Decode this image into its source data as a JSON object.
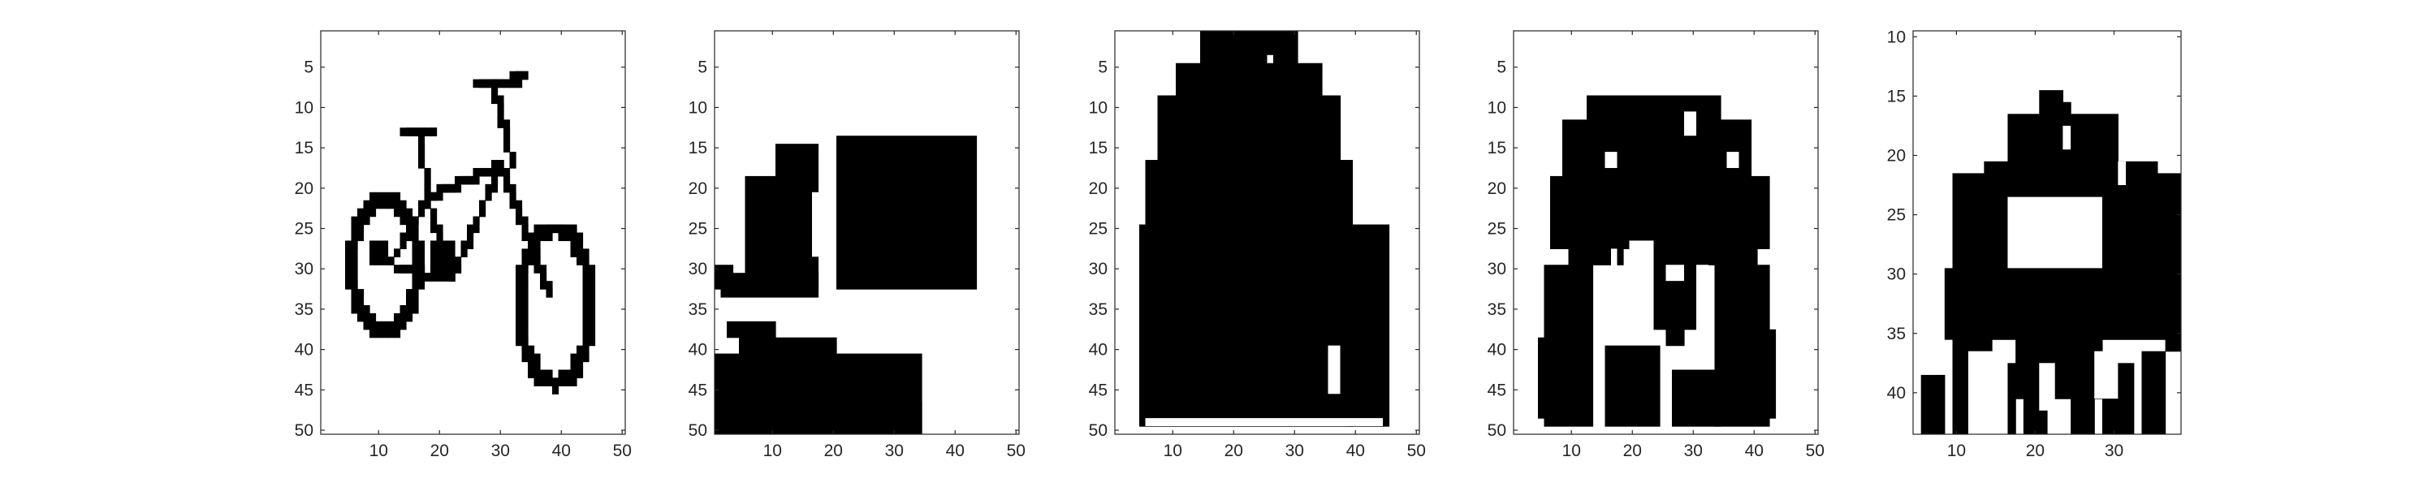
{
  "figure": {
    "background": "#ffffff",
    "axis_color": "#262626",
    "pixel_color": "#000000",
    "panels": [
      {
        "name": "bicycle",
        "x_ticks": [
          "10",
          "20",
          "30",
          "40",
          "50"
        ],
        "y_ticks": [
          "5",
          "10",
          "15",
          "20",
          "25",
          "30",
          "35",
          "40",
          "45",
          "50"
        ],
        "x_range": [
          0.5,
          50.5
        ],
        "y_range": [
          0.5,
          50.5
        ]
      },
      {
        "name": "blocks",
        "x_ticks": [
          "10",
          "20",
          "30",
          "40",
          "50"
        ],
        "y_ticks": [
          "5",
          "10",
          "15",
          "20",
          "25",
          "30",
          "35",
          "40",
          "45",
          "50"
        ],
        "x_range": [
          0.5,
          50.5
        ],
        "y_range": [
          0.5,
          50.5
        ]
      },
      {
        "name": "coat",
        "x_ticks": [
          "10",
          "20",
          "30",
          "40",
          "50"
        ],
        "y_ticks": [
          "5",
          "10",
          "15",
          "20",
          "25",
          "30",
          "35",
          "40",
          "45",
          "50"
        ],
        "x_range": [
          0.5,
          50.5
        ],
        "y_range": [
          0.5,
          50.5
        ]
      },
      {
        "name": "dog-face",
        "x_ticks": [
          "10",
          "20",
          "30",
          "40",
          "50"
        ],
        "y_ticks": [
          "5",
          "10",
          "15",
          "20",
          "25",
          "30",
          "35",
          "40",
          "45",
          "50"
        ],
        "x_range": [
          0.5,
          50.5
        ],
        "y_range": [
          0.5,
          50.5
        ]
      },
      {
        "name": "crab",
        "x_ticks": [
          "10",
          "20",
          "30"
        ],
        "y_ticks": [
          "10",
          "15",
          "20",
          "25",
          "30",
          "35",
          "40"
        ],
        "x_range": [
          4.5,
          38.5
        ],
        "y_range": [
          9.5,
          43.5
        ]
      }
    ]
  }
}
